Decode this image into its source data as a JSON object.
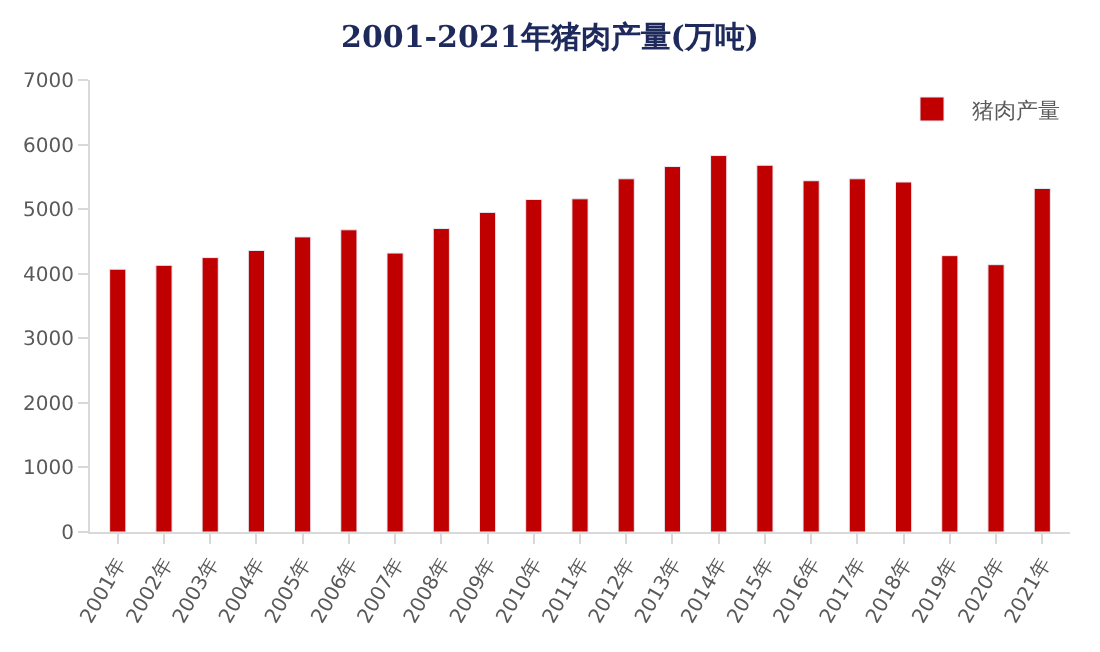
{
  "chart_data": {
    "type": "bar",
    "title": "2001-2021年猪肉产量(万吨)",
    "categories": [
      "2001年",
      "2002年",
      "2003年",
      "2004年",
      "2005年",
      "2006年",
      "2007年",
      "2008年",
      "2009年",
      "2010年",
      "2011年",
      "2012年",
      "2013年",
      "2014年",
      "2015年",
      "2016年",
      "2017年",
      "2018年",
      "2019年",
      "2020年",
      "2021年"
    ],
    "series": [
      {
        "name": "猪肉产量",
        "color": "#c00000",
        "values": [
          4070,
          4130,
          4250,
          4360,
          4570,
          4680,
          4320,
          4700,
          4950,
          5150,
          5160,
          5470,
          5660,
          5830,
          5680,
          5440,
          5470,
          5420,
          4280,
          4140,
          5320
        ]
      }
    ],
    "ylim": [
      0,
      7000
    ],
    "yticks": [
      0,
      1000,
      2000,
      3000,
      4000,
      5000,
      6000,
      7000
    ],
    "legend": "top right"
  }
}
